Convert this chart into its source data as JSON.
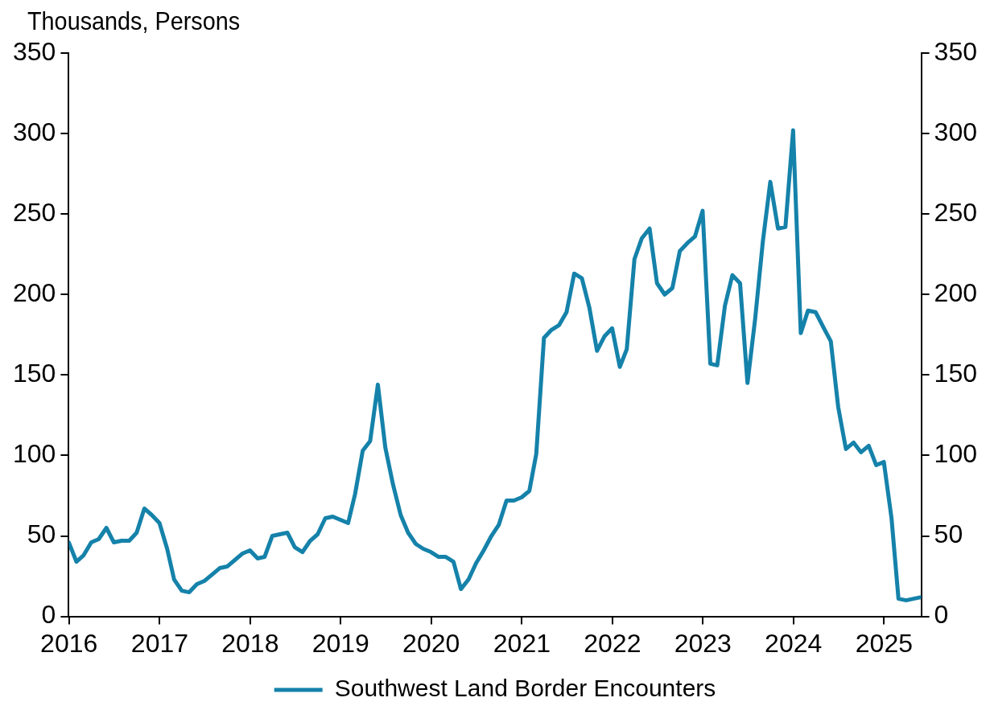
{
  "chart_data": {
    "type": "line",
    "ylabel": "Thousands, Persons",
    "x": [
      "2015-12-31",
      "2016-01-31",
      "2016-02-29",
      "2016-03-31",
      "2016-04-30",
      "2016-05-31",
      "2016-06-30",
      "2016-07-31",
      "2016-08-31",
      "2016-09-30",
      "2016-10-31",
      "2016-11-30",
      "2016-12-31",
      "2017-01-31",
      "2017-02-28",
      "2017-03-31",
      "2017-04-30",
      "2017-05-31",
      "2017-06-30",
      "2017-07-31",
      "2017-08-31",
      "2017-09-30",
      "2017-10-31",
      "2017-11-30",
      "2017-12-31",
      "2018-01-31",
      "2018-02-28",
      "2018-03-31",
      "2018-04-30",
      "2018-05-31",
      "2018-06-30",
      "2018-07-31",
      "2018-08-31",
      "2018-09-30",
      "2018-10-31",
      "2018-11-30",
      "2018-12-31",
      "2019-01-31",
      "2019-02-28",
      "2019-03-31",
      "2019-04-30",
      "2019-05-31",
      "2019-06-30",
      "2019-07-31",
      "2019-08-31",
      "2019-09-30",
      "2019-10-31",
      "2019-11-30",
      "2019-12-31",
      "2020-01-31",
      "2020-02-29",
      "2020-03-31",
      "2020-04-30",
      "2020-05-31",
      "2020-06-30",
      "2020-07-31",
      "2020-08-31",
      "2020-09-30",
      "2020-10-31",
      "2020-11-30",
      "2020-12-31",
      "2021-01-31",
      "2021-02-28",
      "2021-03-31",
      "2021-04-30",
      "2021-05-31",
      "2021-06-30",
      "2021-07-31",
      "2021-08-31",
      "2021-09-30",
      "2021-10-31",
      "2021-11-30",
      "2021-12-31",
      "2022-01-31",
      "2022-02-28",
      "2022-03-31",
      "2022-04-30",
      "2022-05-31",
      "2022-06-30",
      "2022-07-31",
      "2022-08-31",
      "2022-09-30",
      "2022-10-31",
      "2022-11-30",
      "2022-12-31",
      "2023-01-31",
      "2023-02-28",
      "2023-03-31",
      "2023-04-30",
      "2023-05-31",
      "2023-06-30",
      "2023-07-31",
      "2023-08-31",
      "2023-09-30",
      "2023-10-31",
      "2023-11-30",
      "2023-12-31",
      "2024-01-31",
      "2024-02-29",
      "2024-03-31",
      "2024-04-30",
      "2024-05-31",
      "2024-06-30",
      "2024-07-31",
      "2024-08-31",
      "2024-09-30",
      "2024-10-31",
      "2024-11-30",
      "2024-12-31",
      "2025-01-31",
      "2025-02-28",
      "2025-03-31",
      "2025-04-30",
      "2025-05-31"
    ],
    "series": [
      {
        "name": "Southwest Land Border Encounters",
        "color": "#1582aa",
        "values": [
          46,
          34,
          38,
          46,
          48,
          55,
          46,
          47,
          47,
          52,
          67,
          63,
          58,
          42,
          23,
          16,
          15,
          20,
          22,
          26,
          30,
          31,
          35,
          39,
          41,
          36,
          37,
          50,
          51,
          52,
          43,
          40,
          47,
          51,
          61,
          62,
          60,
          58,
          76,
          103,
          109,
          144,
          105,
          82,
          63,
          52,
          45,
          42,
          40,
          37,
          37,
          34,
          17,
          23,
          33,
          41,
          50,
          57,
          72,
          72,
          74,
          78,
          101,
          173,
          178,
          181,
          189,
          213,
          210,
          192,
          165,
          174,
          179,
          155,
          166,
          222,
          235,
          241,
          207,
          200,
          204,
          227,
          232,
          236,
          252,
          157,
          156,
          193,
          212,
          207,
          145,
          185,
          233,
          270,
          241,
          242,
          302,
          176,
          190,
          189,
          180,
          171,
          130,
          104,
          108,
          102,
          106,
          94,
          96,
          61,
          11,
          10,
          11,
          12
        ]
      }
    ],
    "xlim": [
      "2015-12-31",
      "2025-05-31"
    ],
    "xticks": [
      "2016",
      "2017",
      "2018",
      "2019",
      "2020",
      "2021",
      "2022",
      "2023",
      "2024",
      "2025"
    ],
    "ylim": [
      0,
      350
    ],
    "yticks": [
      0,
      50,
      100,
      150,
      200,
      250,
      300,
      350
    ],
    "y2lim": [
      0,
      350
    ],
    "y2ticks": [
      0,
      50,
      100,
      150,
      200,
      250,
      300,
      350
    ],
    "grid": false,
    "legend": "bottom",
    "marker": "none",
    "line_style": "solid"
  }
}
